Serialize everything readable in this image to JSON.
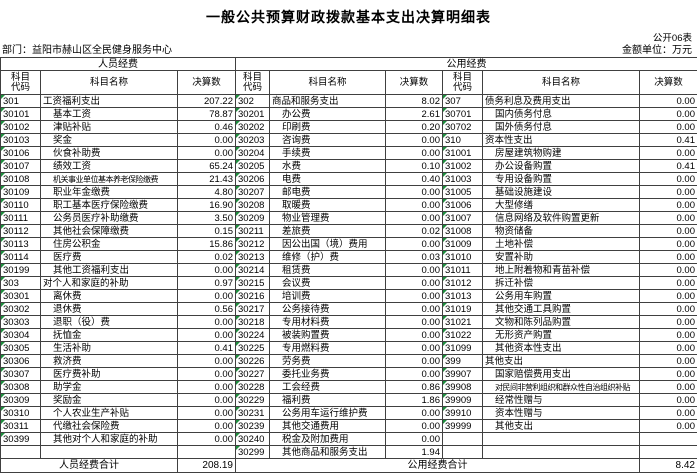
{
  "meta": {
    "title": "一般公共预算财政拨款基本支出决算明细表",
    "sheet_note": "公开06表",
    "department": "部门：益阳市赫山区全民健身服务中心",
    "unit_note": "金额单位：万元"
  },
  "header": {
    "group_personnel": "人员经费",
    "group_public": "公用经费",
    "col_code": "科目\n代码",
    "col_name": "科目名称",
    "col_value": "决算数"
  },
  "table": {
    "rows": [
      [
        "301",
        "工资福利支出",
        "207.22",
        "302",
        "商品和服务支出",
        "8.02",
        "307",
        "债务利息及费用支出",
        "0.00"
      ],
      [
        "30101",
        "基本工资",
        "78.87",
        "30201",
        "办公费",
        "2.61",
        "30701",
        "国内债务付息",
        "0.00"
      ],
      [
        "30102",
        "津贴补贴",
        "0.46",
        "30202",
        "印刷费",
        "0.20",
        "30702",
        "国外债务付息",
        "0.00"
      ],
      [
        "30103",
        "奖金",
        "0.00",
        "30203",
        "咨询费",
        "0.00",
        "310",
        "资本性支出",
        "0.41"
      ],
      [
        "30106",
        "伙食补助费",
        "0.00",
        "30204",
        "手续费",
        "0.00",
        "31001",
        "房屋建筑物购建",
        "0.00"
      ],
      [
        "30107",
        "绩效工资",
        "65.24",
        "30205",
        "水费",
        "0.10",
        "31002",
        "办公设备购置",
        "0.41"
      ],
      [
        "30108",
        "机关事业单位基本养老保险缴费",
        "21.43",
        "30206",
        "电费",
        "0.40",
        "31003",
        "专用设备购置",
        "0.00"
      ],
      [
        "30109",
        "职业年金缴费",
        "4.80",
        "30207",
        "邮电费",
        "0.00",
        "31005",
        "基础设施建设",
        "0.00"
      ],
      [
        "30110",
        "职工基本医疗保险缴费",
        "16.90",
        "30208",
        "取暖费",
        "0.00",
        "31006",
        "大型修缮",
        "0.00"
      ],
      [
        "30111",
        "公务员医疗补助缴费",
        "3.50",
        "30209",
        "物业管理费",
        "0.00",
        "31007",
        "信息网络及软件购置更新",
        "0.00"
      ],
      [
        "30112",
        "其他社会保障缴费",
        "0.15",
        "30211",
        "差旅费",
        "0.02",
        "31008",
        "物资储备",
        "0.00"
      ],
      [
        "30113",
        "住房公积金",
        "15.86",
        "30212",
        "因公出国（境）费用",
        "0.00",
        "31009",
        "土地补偿",
        "0.00"
      ],
      [
        "30114",
        "医疗费",
        "0.02",
        "30213",
        "维修（护）费",
        "0.03",
        "31010",
        "安置补助",
        "0.00"
      ],
      [
        "30199",
        "其他工资福利支出",
        "0.00",
        "30214",
        "租赁费",
        "0.00",
        "31011",
        "地上附着物和青苗补偿",
        "0.00"
      ],
      [
        "303",
        "对个人和家庭的补助",
        "0.97",
        "30215",
        "会议费",
        "0.00",
        "31012",
        "拆迁补偿",
        "0.00"
      ],
      [
        "30301",
        "离休费",
        "0.00",
        "30216",
        "培训费",
        "0.00",
        "31013",
        "公务用车购置",
        "0.00"
      ],
      [
        "30302",
        "退休费",
        "0.56",
        "30217",
        "公务接待费",
        "0.00",
        "31019",
        "其他交通工具购置",
        "0.00"
      ],
      [
        "30303",
        "退职（役）费",
        "0.00",
        "30218",
        "专用材料费",
        "0.00",
        "31021",
        "文物和陈列品购置",
        "0.00"
      ],
      [
        "30304",
        "抚恤金",
        "0.00",
        "30224",
        "被装购置费",
        "0.00",
        "31022",
        "无形资产购置",
        "0.00"
      ],
      [
        "30305",
        "生活补助",
        "0.41",
        "30225",
        "专用燃料费",
        "0.00",
        "31099",
        "其他资本性支出",
        "0.00"
      ],
      [
        "30306",
        "救济费",
        "0.00",
        "30226",
        "劳务费",
        "0.00",
        "399",
        "其他支出",
        "0.00"
      ],
      [
        "30307",
        "医疗费补助",
        "0.00",
        "30227",
        "委托业务费",
        "0.00",
        "39907",
        "国家赔偿费用支出",
        "0.00"
      ],
      [
        "30308",
        "助学金",
        "0.00",
        "30228",
        "工会经费",
        "0.86",
        "39908",
        "对民间非营利组织和群众性自治组织补贴",
        "0.00"
      ],
      [
        "30309",
        "奖励金",
        "0.00",
        "30229",
        "福利费",
        "1.86",
        "39909",
        "经常性赠与",
        "0.00"
      ],
      [
        "30310",
        "个人农业生产补贴",
        "0.00",
        "30231",
        "公务用车运行维护费",
        "0.00",
        "39910",
        "资本性赠与",
        "0.00"
      ],
      [
        "30311",
        "代缴社会保险费",
        "0.00",
        "30239",
        "其他交通费用",
        "0.00",
        "39999",
        "其他支出",
        "0.00"
      ],
      [
        "30399",
        "其他对个人和家庭的补助",
        "0.00",
        "30240",
        "税金及附加费用",
        "0.00",
        "",
        "",
        ""
      ],
      [
        "",
        "",
        "",
        "30299",
        "其他商品和服务支出",
        "1.94",
        "",
        "",
        ""
      ]
    ]
  },
  "totals": {
    "personnel_label": "人员经费合计",
    "personnel_value": "208.19",
    "public_label": "公用经费合计",
    "public_value": "8.42"
  },
  "colors": {
    "grid_line": "#404040",
    "flag_green": "#1e8e3e",
    "text": "#000000",
    "background": "#ffffff"
  }
}
